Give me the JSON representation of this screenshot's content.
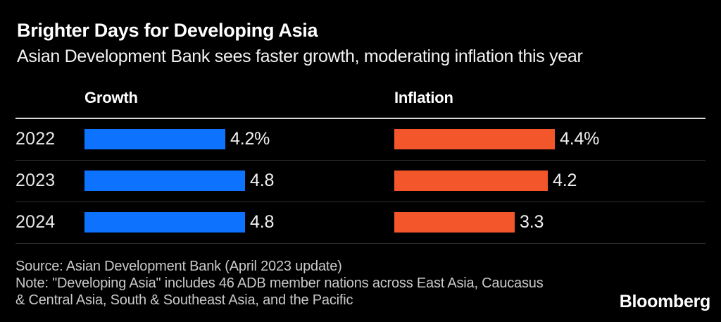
{
  "header": {
    "title": "Brighter Days for Developing Asia",
    "subtitle": "Asian Development Bank sees faster growth, moderating inflation this year"
  },
  "chart_data": {
    "type": "bar",
    "orientation": "horizontal",
    "categories": [
      "2022",
      "2023",
      "2024"
    ],
    "series": [
      {
        "name": "Growth",
        "color": "#0d73ff",
        "values": [
          4.2,
          4.8,
          4.8
        ],
        "labels": [
          "4.2%",
          "4.8",
          "4.8"
        ]
      },
      {
        "name": "Inflation",
        "color": "#f4562b",
        "values": [
          4.4,
          4.2,
          3.3
        ],
        "labels": [
          "4.4%",
          "4.2",
          "3.3"
        ]
      }
    ],
    "unit": "percent",
    "value_labels_on": true,
    "grid": false,
    "legend_position": "column-headers"
  },
  "colors": {
    "background": "#000000",
    "growth_bar": "#0d73ff",
    "inflation_bar": "#f4562b",
    "header_rule": "#d9d9d9",
    "row_separator": "#2b2e32",
    "footer_text": "#c9c9c9"
  },
  "footer": {
    "source": "Source: Asian Development Bank (April 2023 update)",
    "note_line1": "Note: \"Developing Asia\" includes 46 ADB member nations across East Asia, Caucasus",
    "note_line2": "& Central Asia, South & Southeast Asia, and the Pacific",
    "logo": "Bloomberg"
  }
}
